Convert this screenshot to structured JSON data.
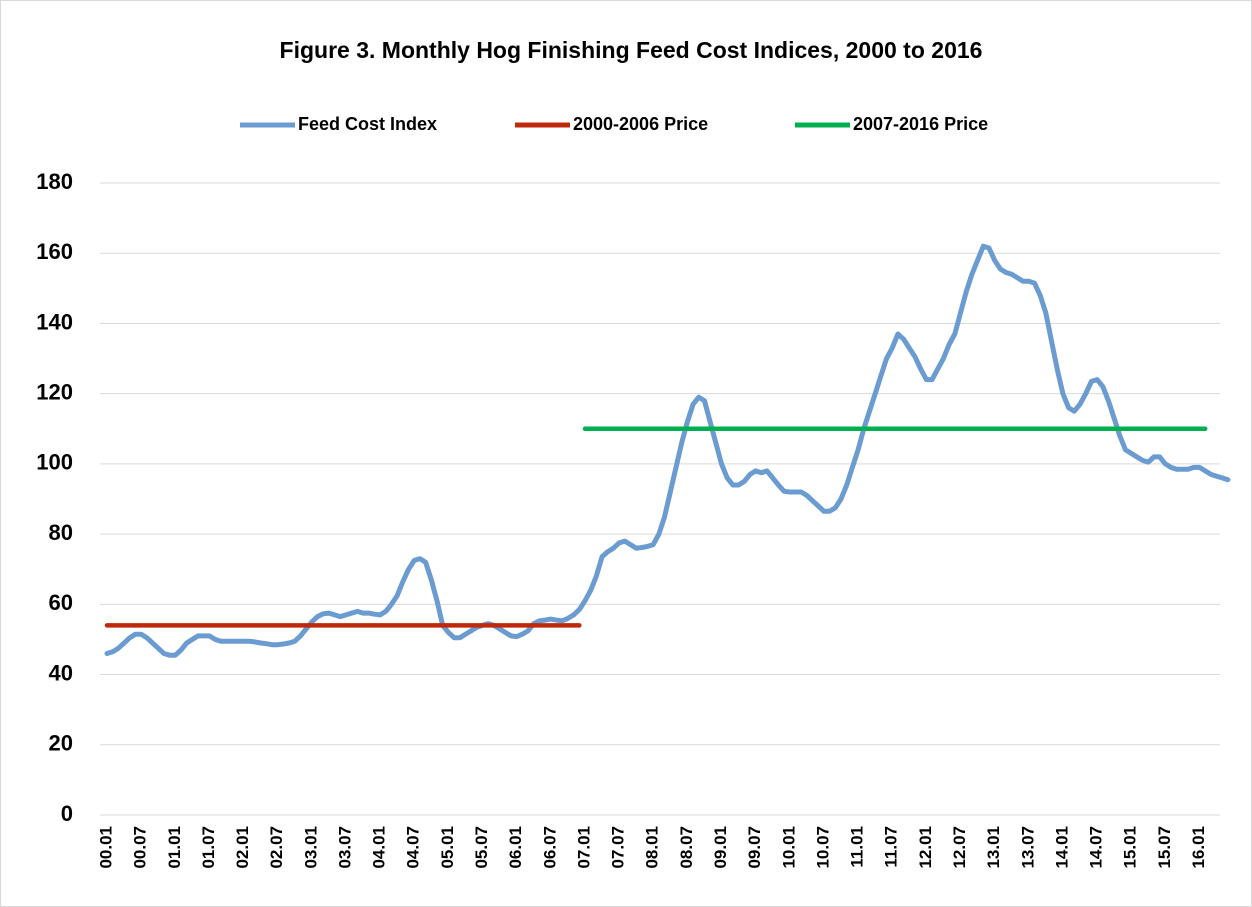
{
  "chart_data": {
    "type": "line",
    "title": "Figure 3.  Monthly Hog Finishing Feed Cost Indices, 2000 to 2016",
    "categories": [
      "00.01",
      null,
      null,
      null,
      null,
      null,
      "00.07",
      null,
      null,
      null,
      null,
      null,
      "01.01",
      null,
      null,
      null,
      null,
      null,
      "01.07",
      null,
      null,
      null,
      null,
      null,
      "02.01",
      null,
      null,
      null,
      null,
      null,
      "02.07",
      null,
      null,
      null,
      null,
      null,
      "03.01",
      null,
      null,
      null,
      null,
      null,
      "03.07",
      null,
      null,
      null,
      null,
      null,
      "04.01",
      null,
      null,
      null,
      null,
      null,
      "04.07",
      null,
      null,
      null,
      null,
      null,
      "05.01",
      null,
      null,
      null,
      null,
      null,
      "05.07",
      null,
      null,
      null,
      null,
      null,
      "06.01",
      null,
      null,
      null,
      null,
      null,
      "06.07",
      null,
      null,
      null,
      null,
      null,
      "07.01",
      null,
      null,
      null,
      null,
      null,
      "07.07",
      null,
      null,
      null,
      null,
      null,
      "08.01",
      null,
      null,
      null,
      null,
      null,
      "08.07",
      null,
      null,
      null,
      null,
      null,
      "09.01",
      null,
      null,
      null,
      null,
      null,
      "09.07",
      null,
      null,
      null,
      null,
      null,
      "10.01",
      null,
      null,
      null,
      null,
      null,
      "10.07",
      null,
      null,
      null,
      null,
      null,
      "11.01",
      null,
      null,
      null,
      null,
      null,
      "11.07",
      null,
      null,
      null,
      null,
      null,
      "12.01",
      null,
      null,
      null,
      null,
      null,
      "12.07",
      null,
      null,
      null,
      null,
      null,
      "13.01",
      null,
      null,
      null,
      null,
      null,
      "13.07",
      null,
      null,
      null,
      null,
      null,
      "14.01",
      null,
      null,
      null,
      null,
      null,
      "14.07",
      null,
      null,
      null,
      null,
      null,
      "15.01",
      null,
      null,
      null,
      null,
      null,
      "15.07",
      null,
      null,
      null,
      null,
      null,
      "16.01",
      null,
      null,
      null,
      null,
      null
    ],
    "series": [
      {
        "name": "Feed Cost Index",
        "color": "#6a9bd1",
        "values": [
          46,
          46.5,
          47.5,
          49,
          50.5,
          51.5,
          51.5,
          50.5,
          49,
          47.5,
          46,
          45.5,
          45.5,
          47,
          49,
          50,
          51,
          51,
          51,
          50,
          49.5,
          49.5,
          49.5,
          49.5,
          49.5,
          49.5,
          49.3,
          49,
          48.8,
          48.5,
          48.5,
          48.7,
          49,
          49.5,
          51,
          53,
          55,
          56.5,
          57.3,
          57.5,
          57,
          56.5,
          57,
          57.5,
          58,
          57.5,
          57.5,
          57.2,
          57,
          58,
          60,
          62.5,
          66.5,
          70,
          72.5,
          73,
          72,
          67,
          61,
          54,
          52,
          50.5,
          50.5,
          51.5,
          52.5,
          53.5,
          54,
          54.5,
          54,
          53,
          52,
          51,
          50.8,
          51.5,
          52.5,
          54.5,
          55.3,
          55.5,
          55.8,
          55.5,
          55.3,
          56,
          57,
          58.5,
          61,
          64,
          68,
          73.5,
          75,
          76,
          77.5,
          78,
          77,
          76,
          76.2,
          76.5,
          77,
          80,
          85,
          92,
          99,
          106,
          112,
          117,
          119,
          118,
          112,
          106,
          100,
          96,
          94,
          94,
          95,
          97,
          98,
          97.5,
          98,
          96,
          94,
          92.2,
          92,
          92,
          92,
          91,
          89.5,
          88,
          86.5,
          86.5,
          87.5,
          90,
          94,
          99,
          104,
          110,
          115,
          120,
          125,
          130,
          133,
          137,
          135.5,
          133,
          130.5,
          127,
          124,
          124,
          127,
          130,
          134,
          137,
          143,
          149,
          154,
          158,
          162,
          161.5,
          158,
          155.5,
          154.5,
          154,
          153,
          152,
          152,
          151.5,
          148,
          143,
          135,
          127,
          120,
          116,
          115,
          117,
          120,
          123.5,
          124,
          122,
          118,
          113,
          108,
          104,
          103,
          102,
          101,
          100.5,
          102,
          102,
          100,
          99,
          98.5,
          98.5,
          98.5,
          99,
          99,
          98,
          97,
          96.5,
          96,
          95.5
        ]
      },
      {
        "name": "2000-2006 Price",
        "color": "#c0280c",
        "values": [
          54,
          54,
          54,
          54,
          54,
          54,
          54,
          54,
          54,
          54,
          54,
          54,
          54,
          54,
          54,
          54,
          54,
          54,
          54,
          54,
          54,
          54,
          54,
          54,
          54,
          54,
          54,
          54,
          54,
          54,
          54,
          54,
          54,
          54,
          54,
          54,
          54,
          54,
          54,
          54,
          54,
          54,
          54,
          54,
          54,
          54,
          54,
          54,
          54,
          54,
          54,
          54,
          54,
          54,
          54,
          54,
          54,
          54,
          54,
          54,
          54,
          54,
          54,
          54,
          54,
          54,
          54,
          54,
          54,
          54,
          54,
          54,
          54,
          54,
          54,
          54,
          54,
          54,
          54,
          54,
          54,
          54,
          54,
          54,
          null,
          null,
          null,
          null,
          null,
          null,
          null,
          null,
          null,
          null,
          null,
          null,
          null,
          null,
          null,
          null,
          null,
          null,
          null,
          null,
          null,
          null,
          null,
          null,
          null,
          null,
          null,
          null,
          null,
          null,
          null,
          null,
          null,
          null,
          null,
          null,
          null,
          null,
          null,
          null,
          null,
          null,
          null,
          null,
          null,
          null,
          null,
          null,
          null,
          null,
          null,
          null,
          null,
          null,
          null,
          null,
          null,
          null,
          null,
          null,
          null,
          null,
          null,
          null,
          null,
          null,
          null,
          null,
          null,
          null,
          null,
          null,
          null,
          null,
          null,
          null,
          null,
          null,
          null,
          null,
          null,
          null,
          null,
          null,
          null,
          null,
          null,
          null,
          null,
          null,
          null,
          null,
          null,
          null,
          null,
          null,
          null,
          null,
          null,
          null,
          null,
          null,
          null,
          null,
          null,
          null,
          null,
          null,
          null,
          null,
          null,
          null,
          null,
          null
        ]
      },
      {
        "name": "2007-2016 Price",
        "color": "#00b050",
        "values": [
          null,
          null,
          null,
          null,
          null,
          null,
          null,
          null,
          null,
          null,
          null,
          null,
          null,
          null,
          null,
          null,
          null,
          null,
          null,
          null,
          null,
          null,
          null,
          null,
          null,
          null,
          null,
          null,
          null,
          null,
          null,
          null,
          null,
          null,
          null,
          null,
          null,
          null,
          null,
          null,
          null,
          null,
          null,
          null,
          null,
          null,
          null,
          null,
          null,
          null,
          null,
          null,
          null,
          null,
          null,
          null,
          null,
          null,
          null,
          null,
          null,
          null,
          null,
          null,
          null,
          null,
          null,
          null,
          null,
          null,
          null,
          null,
          null,
          null,
          null,
          null,
          null,
          null,
          null,
          null,
          null,
          null,
          null,
          null,
          110,
          110,
          110,
          110,
          110,
          110,
          110,
          110,
          110,
          110,
          110,
          110,
          110,
          110,
          110,
          110,
          110,
          110,
          110,
          110,
          110,
          110,
          110,
          110,
          110,
          110,
          110,
          110,
          110,
          110,
          110,
          110,
          110,
          110,
          110,
          110,
          110,
          110,
          110,
          110,
          110,
          110,
          110,
          110,
          110,
          110,
          110,
          110,
          110,
          110,
          110,
          110,
          110,
          110,
          110,
          110,
          110,
          110,
          110,
          110,
          110,
          110,
          110,
          110,
          110,
          110,
          110,
          110,
          110,
          110,
          110,
          110,
          110,
          110,
          110,
          110,
          110,
          110,
          110,
          110,
          110,
          110,
          110,
          110,
          110,
          110,
          110,
          110,
          110,
          110,
          110,
          110,
          110,
          110,
          110,
          110,
          110,
          110,
          110,
          110,
          110,
          110,
          110,
          110,
          110,
          110,
          110,
          110,
          110,
          110,
          null,
          null,
          null,
          null
        ]
      }
    ],
    "ylim": [
      0,
      180
    ],
    "yticks": [
      0,
      20,
      40,
      60,
      80,
      100,
      120,
      140,
      160,
      180
    ],
    "grid": true,
    "legend": "top"
  }
}
